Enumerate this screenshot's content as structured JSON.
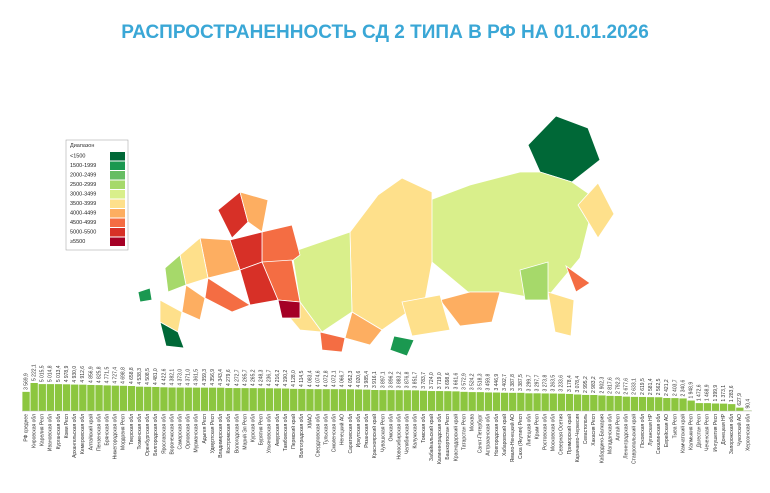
{
  "chart_data": {
    "type": "bar",
    "title": "РАСПРОСТРАНЕННОСТЬ СД 2 ТИПА В РФ НА 01.01.2026",
    "color": "#8cc63f",
    "categories": [
      "РФ среднее",
      "Кировская обл",
      "Карелия Респ",
      "Ивановская обл",
      "Курганская обл",
      "Коми Респ",
      "Архангельская обл",
      "Кемеровская обл",
      "Алтайский край",
      "Пензенская обл",
      "Брянская обл",
      "Нижегородская обл",
      "Мордовия Респ",
      "Тверская обл",
      "Тюменская обл",
      "Оренбургская обл",
      "Белгородская обл",
      "Ярославская обл",
      "Воронежская обл",
      "Самарская обл",
      "Орловская обл",
      "Мурманская обл",
      "Адыгея Респ",
      "Удмуртская Респ",
      "Владимирская обл",
      "Костромская обл",
      "Вологодская обл",
      "Марий Эл Респ",
      "Курская обл",
      "Бурятия Респ",
      "Ульяновская обл",
      "Амурская обл",
      "Тамбовская обл",
      "Пермский край",
      "Волгоградская обл",
      "ХМАО",
      "Свердловская обл",
      "Тульская обл",
      "Смоленская обл",
      "Ненецкий АО",
      "Саратовская обл",
      "Иркутская обл",
      "Рязанская обл",
      "Красноярский край",
      "Чувашская Респ",
      "Омская обл",
      "Новосибирская обл",
      "Челябинская обл",
      "Калужская обл",
      "Томская обл",
      "Забайкальский край",
      "Калининградская обл",
      "Башкортостан Респ",
      "Краснодарский край",
      "Татарстан Респ",
      "Москва",
      "Санкт-Петербург",
      "Астраханская обл",
      "Новгородская обл",
      "Хабаровский край",
      "Ямало-Ненецкий АО",
      "Саха (Якутия) Респ",
      "Липецкая обл",
      "Крым Респ",
      "Ростовская обл",
      "Московская обл",
      "Северная Осетия",
      "Приморский край",
      "Карачаево-Черкесия",
      "Севастополь",
      "Хакасия Респ",
      "Кабардино-Балкария",
      "Магаданская обл",
      "Алтай Респ",
      "Ленинградская обл",
      "Ставропольский край",
      "Псковская обл",
      "Луганская НР",
      "Сахалинская обл",
      "Еврейская АО",
      "Тыва Респ",
      "Камчатский край",
      "Калмыкия Респ",
      "Дагестан Респ",
      "Чеченская Респ",
      "Ингушетия Респ",
      "Донецкая НР",
      "Запорожская обл",
      "Чукотский АО",
      "Херсонская обл"
    ],
    "values": [
      3569.9,
      5222.1,
      5015.5,
      5014.8,
      5013.4,
      4978.9,
      4930.0,
      4912.6,
      4856.9,
      4825.8,
      4771.5,
      4727.4,
      4698.8,
      4658.8,
      4538.3,
      4508.5,
      4481.0,
      4422.6,
      4382.1,
      4373.0,
      4371.0,
      4361.5,
      4359.3,
      4356.9,
      4343.4,
      4279.6,
      4272.7,
      4265.7,
      4265.2,
      4248.3,
      4236.7,
      4216.2,
      4190.2,
      4128.0,
      4114.5,
      4083.4,
      4074.6,
      4072.8,
      4072.1,
      4066.7,
      4052.3,
      4020.6,
      3985.4,
      3916.1,
      3897.1,
      3896.2,
      3883.2,
      3876.8,
      3851.7,
      3783.7,
      3724.0,
      3719.0,
      3698.6,
      3661.6,
      3572.9,
      3524.2,
      3518.3,
      3459.8,
      3446.9,
      3402.7,
      3387.8,
      3387.5,
      3299.7,
      3297.7,
      3273.8,
      3263.5,
      3233.6,
      3178.4,
      3078.4,
      2995.2,
      2983.2,
      2902.3,
      2817.6,
      2792.3,
      2677.6,
      2633.1,
      2619.5,
      2581.4,
      2562.5,
      2421.2,
      2403.7,
      2340.6,
      1948.9,
      1472.6,
      1468.9,
      1399.9,
      1373.1,
      1283.6,
      627.9,
      90.4
    ],
    "value_labels": [
      "3 569,9",
      "5 222,1",
      "5 015,5",
      "5 014,8",
      "5 013,4",
      "4 978,9",
      "4 930,0",
      "4 912,6",
      "4 856,9",
      "4 825,8",
      "4 771,5",
      "4 727,4",
      "4 698,8",
      "4 658,8",
      "4 538,3",
      "4 508,5",
      "4 481,0",
      "4 422,6",
      "4 382,1",
      "4 373,0",
      "4 371,0",
      "4 361,5",
      "4 359,3",
      "4 356,9",
      "4 343,4",
      "4 279,6",
      "4 272,7",
      "4 265,7",
      "4 265,2",
      "4 248,3",
      "4 236,7",
      "4 216,2",
      "4 190,2",
      "4 128,0",
      "4 114,5",
      "4 083,4",
      "4 074,6",
      "4 072,8",
      "4 072,1",
      "4 066,7",
      "4 052,3",
      "4 020,6",
      "3 985,4",
      "3 916,1",
      "3 897,1",
      "3 896,2",
      "3 883,2",
      "3 876,8",
      "3 851,7",
      "3 783,7",
      "3 724,0",
      "3 719,0",
      "3 698,6",
      "3 661,6",
      "3 572,9",
      "3 524,2",
      "3 518,3",
      "3 459,8",
      "3 446,9",
      "3 402,7",
      "3 387,8",
      "3 387,5",
      "3 299,7",
      "3 297,7",
      "3 273,8",
      "3 263,5",
      "3 233,6",
      "3 178,4",
      "3 078,4",
      "2 995,2",
      "2 983,2",
      "2 902,3",
      "2 817,6",
      "2 792,3",
      "2 677,6",
      "2 633,1",
      "2 619,5",
      "2 581,4",
      "2 562,5",
      "2 421,2",
      "2 403,7",
      "2 340,6",
      "1 948,9",
      "1 472,6",
      "1 468,9",
      "1 399,9",
      "1 373,1",
      "1 283,6",
      "627,9",
      "90,4"
    ]
  },
  "map": {
    "legend_title": "Диапазон",
    "legend": [
      {
        "label": "<1500",
        "color": "#006837"
      },
      {
        "label": "1500-1999",
        "color": "#1a9850"
      },
      {
        "label": "2000-2499",
        "color": "#66bd63"
      },
      {
        "label": "2500-2999",
        "color": "#a6d96a"
      },
      {
        "label": "3000-3499",
        "color": "#d9ef8b"
      },
      {
        "label": "3500-3999",
        "color": "#fee08b"
      },
      {
        "label": "4000-4499",
        "color": "#fdae61"
      },
      {
        "label": "4500-4999",
        "color": "#f46d43"
      },
      {
        "label": "5000-5500",
        "color": "#d73027"
      },
      {
        "label": "≥5500",
        "color": "#a50026"
      }
    ]
  }
}
